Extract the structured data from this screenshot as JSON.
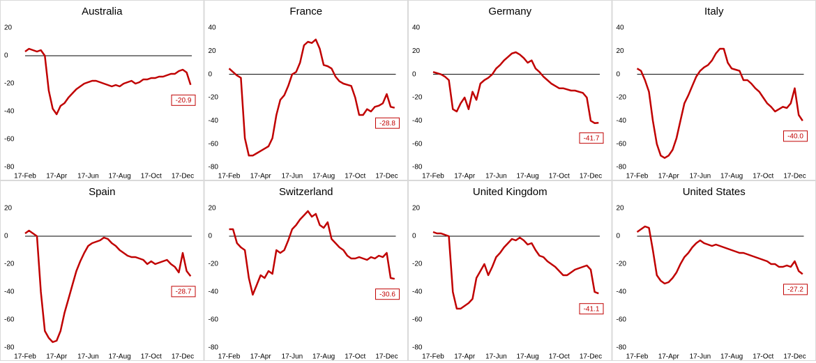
{
  "chart_data": [
    {
      "type": "line",
      "title": "Australia",
      "color": "#c00000",
      "ylim": [
        -80,
        20
      ],
      "yticks": [
        20,
        0,
        -20,
        -40,
        -60,
        -80
      ],
      "categories": [
        "17-Feb",
        null,
        null,
        null,
        null,
        null,
        null,
        null,
        "17-Apr",
        null,
        null,
        null,
        null,
        null,
        null,
        null,
        "17-Jun",
        null,
        null,
        null,
        null,
        null,
        null,
        null,
        "17-Aug",
        null,
        null,
        null,
        null,
        null,
        null,
        null,
        "17-Oct",
        null,
        null,
        null,
        null,
        null,
        null,
        null,
        "17-Dec",
        null,
        null
      ],
      "values": [
        3,
        5,
        4,
        3,
        4,
        0,
        -25,
        -38,
        -42,
        -36,
        -34,
        -30,
        -27,
        -24,
        -22,
        -20,
        -19,
        -18,
        -18,
        -19,
        -20,
        -21,
        -22,
        -21,
        -22,
        -20,
        -19,
        -18,
        -20,
        -19,
        -17,
        -17,
        -16,
        -16,
        -15,
        -15,
        -14,
        -13,
        -13,
        -11,
        -10,
        -12,
        -20.9
      ]
    },
    {
      "type": "line",
      "title": "France",
      "color": "#c00000",
      "ylim": [
        -80,
        40
      ],
      "yticks": [
        40,
        20,
        0,
        -20,
        -40,
        -60,
        -80
      ],
      "categories": [
        "17-Feb",
        null,
        null,
        null,
        null,
        null,
        null,
        null,
        "17-Apr",
        null,
        null,
        null,
        null,
        null,
        null,
        null,
        "17-Jun",
        null,
        null,
        null,
        null,
        null,
        null,
        null,
        "17-Aug",
        null,
        null,
        null,
        null,
        null,
        null,
        null,
        "17-Oct",
        null,
        null,
        null,
        null,
        null,
        null,
        null,
        "17-Dec",
        null,
        null
      ],
      "values": [
        5,
        2,
        -1,
        -3,
        -55,
        -70,
        -70,
        -68,
        -66,
        -64,
        -62,
        -55,
        -35,
        -22,
        -18,
        -10,
        0,
        2,
        10,
        25,
        28,
        27,
        30,
        22,
        8,
        7,
        5,
        -2,
        -6,
        -8,
        -9,
        -10,
        -20,
        -35,
        -35,
        -30,
        -32,
        -28,
        -27,
        -25,
        -17,
        -28,
        -28.8
      ]
    },
    {
      "type": "line",
      "title": "Germany",
      "color": "#c00000",
      "ylim": [
        -80,
        40
      ],
      "yticks": [
        40,
        20,
        0,
        -20,
        -40,
        -60,
        -80
      ],
      "categories": [
        "17-Feb",
        null,
        null,
        null,
        null,
        null,
        null,
        null,
        "17-Apr",
        null,
        null,
        null,
        null,
        null,
        null,
        null,
        "17-Jun",
        null,
        null,
        null,
        null,
        null,
        null,
        null,
        "17-Aug",
        null,
        null,
        null,
        null,
        null,
        null,
        null,
        "17-Oct",
        null,
        null,
        null,
        null,
        null,
        null,
        null,
        "17-Dec",
        null,
        null
      ],
      "values": [
        2,
        1,
        0,
        -2,
        -5,
        -30,
        -32,
        -25,
        -20,
        -30,
        -15,
        -22,
        -8,
        -5,
        -3,
        0,
        5,
        8,
        12,
        15,
        18,
        19,
        17,
        14,
        10,
        12,
        5,
        2,
        -2,
        -5,
        -8,
        -10,
        -12,
        -12,
        -13,
        -14,
        -14,
        -15,
        -16,
        -20,
        -40,
        -42,
        -41.7
      ]
    },
    {
      "type": "line",
      "title": "Italy",
      "color": "#c00000",
      "ylim": [
        -80,
        40
      ],
      "yticks": [
        40,
        20,
        0,
        -20,
        -40,
        -60,
        -80
      ],
      "categories": [
        "17-Feb",
        null,
        null,
        null,
        null,
        null,
        null,
        null,
        "17-Apr",
        null,
        null,
        null,
        null,
        null,
        null,
        null,
        "17-Jun",
        null,
        null,
        null,
        null,
        null,
        null,
        null,
        "17-Aug",
        null,
        null,
        null,
        null,
        null,
        null,
        null,
        "17-Oct",
        null,
        null,
        null,
        null,
        null,
        null,
        null,
        "17-Dec",
        null,
        null
      ],
      "values": [
        5,
        3,
        -5,
        -15,
        -40,
        -60,
        -70,
        -72,
        -70,
        -65,
        -55,
        -40,
        -25,
        -18,
        -10,
        -2,
        3,
        6,
        8,
        12,
        18,
        22,
        22,
        10,
        5,
        4,
        3,
        -5,
        -5,
        -8,
        -12,
        -15,
        -20,
        -25,
        -28,
        -32,
        -30,
        -28,
        -29,
        -25,
        -12,
        -35,
        -40
      ],
      "value_labels": [
        null,
        null,
        null,
        null,
        null,
        null,
        null,
        null,
        null,
        null,
        null,
        null,
        null,
        null,
        null,
        null,
        null,
        null,
        null,
        null,
        null,
        null,
        null,
        null,
        null,
        null,
        null,
        null,
        null,
        null,
        null,
        null,
        null,
        null,
        null,
        null,
        null,
        null,
        null,
        null,
        null,
        null,
        "-40.0"
      ]
    },
    {
      "type": "line",
      "title": "Spain",
      "color": "#c00000",
      "ylim": [
        -80,
        20
      ],
      "yticks": [
        20,
        0,
        -20,
        -40,
        -60,
        -80
      ],
      "categories": [
        "17-Feb",
        null,
        null,
        null,
        null,
        null,
        null,
        null,
        "17-Apr",
        null,
        null,
        null,
        null,
        null,
        null,
        null,
        "17-Jun",
        null,
        null,
        null,
        null,
        null,
        null,
        null,
        "17-Aug",
        null,
        null,
        null,
        null,
        null,
        null,
        null,
        "17-Oct",
        null,
        null,
        null,
        null,
        null,
        null,
        null,
        "17-Dec",
        null,
        null
      ],
      "values": [
        2,
        4,
        2,
        0,
        -40,
        -68,
        -73,
        -76,
        -75,
        -68,
        -55,
        -45,
        -35,
        -25,
        -18,
        -12,
        -7,
        -5,
        -4,
        -3,
        -1,
        -2,
        -5,
        -7,
        -10,
        -12,
        -14,
        -15,
        -15,
        -16,
        -17,
        -20,
        -18,
        -20,
        -19,
        -18,
        -17,
        -20,
        -22,
        -26,
        -12,
        -25,
        -28.7
      ]
    },
    {
      "type": "line",
      "title": "Switzerland",
      "color": "#c00000",
      "ylim": [
        -80,
        20
      ],
      "yticks": [
        20,
        0,
        -20,
        -40,
        -60,
        -80
      ],
      "categories": [
        "17-Feb",
        null,
        null,
        null,
        null,
        null,
        null,
        null,
        "17-Apr",
        null,
        null,
        null,
        null,
        null,
        null,
        null,
        "17-Jun",
        null,
        null,
        null,
        null,
        null,
        null,
        null,
        "17-Aug",
        null,
        null,
        null,
        null,
        null,
        null,
        null,
        "17-Oct",
        null,
        null,
        null,
        null,
        null,
        null,
        null,
        "17-Dec",
        null,
        null
      ],
      "values": [
        5,
        5,
        -5,
        -8,
        -10,
        -30,
        -42,
        -35,
        -28,
        -30,
        -25,
        -27,
        -10,
        -12,
        -10,
        -3,
        5,
        8,
        12,
        15,
        18,
        14,
        16,
        8,
        6,
        10,
        -2,
        -5,
        -8,
        -10,
        -14,
        -16,
        -16,
        -15,
        -16,
        -17,
        -15,
        -16,
        -14,
        -15,
        -12,
        -30,
        -30.6
      ]
    },
    {
      "type": "line",
      "title": "United Kingdom",
      "color": "#c00000",
      "ylim": [
        -80,
        20
      ],
      "yticks": [
        20,
        0,
        -20,
        -40,
        -60,
        -80
      ],
      "categories": [
        "17-Feb",
        null,
        null,
        null,
        null,
        null,
        null,
        null,
        "17-Apr",
        null,
        null,
        null,
        null,
        null,
        null,
        null,
        "17-Jun",
        null,
        null,
        null,
        null,
        null,
        null,
        null,
        "17-Aug",
        null,
        null,
        null,
        null,
        null,
        null,
        null,
        "17-Oct",
        null,
        null,
        null,
        null,
        null,
        null,
        null,
        "17-Dec",
        null,
        null
      ],
      "values": [
        3,
        2,
        2,
        1,
        0,
        -40,
        -52,
        -52,
        -50,
        -48,
        -45,
        -30,
        -25,
        -20,
        -28,
        -22,
        -15,
        -12,
        -8,
        -5,
        -2,
        -3,
        -1,
        -3,
        -6,
        -5,
        -10,
        -14,
        -15,
        -18,
        -20,
        -22,
        -25,
        -28,
        -28,
        -26,
        -24,
        -23,
        -22,
        -21,
        -24,
        -40,
        -41.1
      ]
    },
    {
      "type": "line",
      "title": "United States",
      "color": "#c00000",
      "ylim": [
        -80,
        20
      ],
      "yticks": [
        20,
        0,
        -20,
        -40,
        -60,
        -80
      ],
      "categories": [
        "17-Feb",
        null,
        null,
        null,
        null,
        null,
        null,
        null,
        "17-Apr",
        null,
        null,
        null,
        null,
        null,
        null,
        null,
        "17-Jun",
        null,
        null,
        null,
        null,
        null,
        null,
        null,
        "17-Aug",
        null,
        null,
        null,
        null,
        null,
        null,
        null,
        "17-Oct",
        null,
        null,
        null,
        null,
        null,
        null,
        null,
        "17-Dec",
        null,
        null
      ],
      "values": [
        3,
        5,
        7,
        6,
        -10,
        -28,
        -32,
        -34,
        -33,
        -30,
        -26,
        -20,
        -15,
        -12,
        -8,
        -5,
        -3,
        -5,
        -6,
        -7,
        -6,
        -7,
        -8,
        -9,
        -10,
        -11,
        -12,
        -12,
        -13,
        -14,
        -15,
        -16,
        -17,
        -18,
        -20,
        -20,
        -22,
        -22,
        -21,
        -22,
        -18,
        -25,
        -27.2
      ]
    }
  ]
}
